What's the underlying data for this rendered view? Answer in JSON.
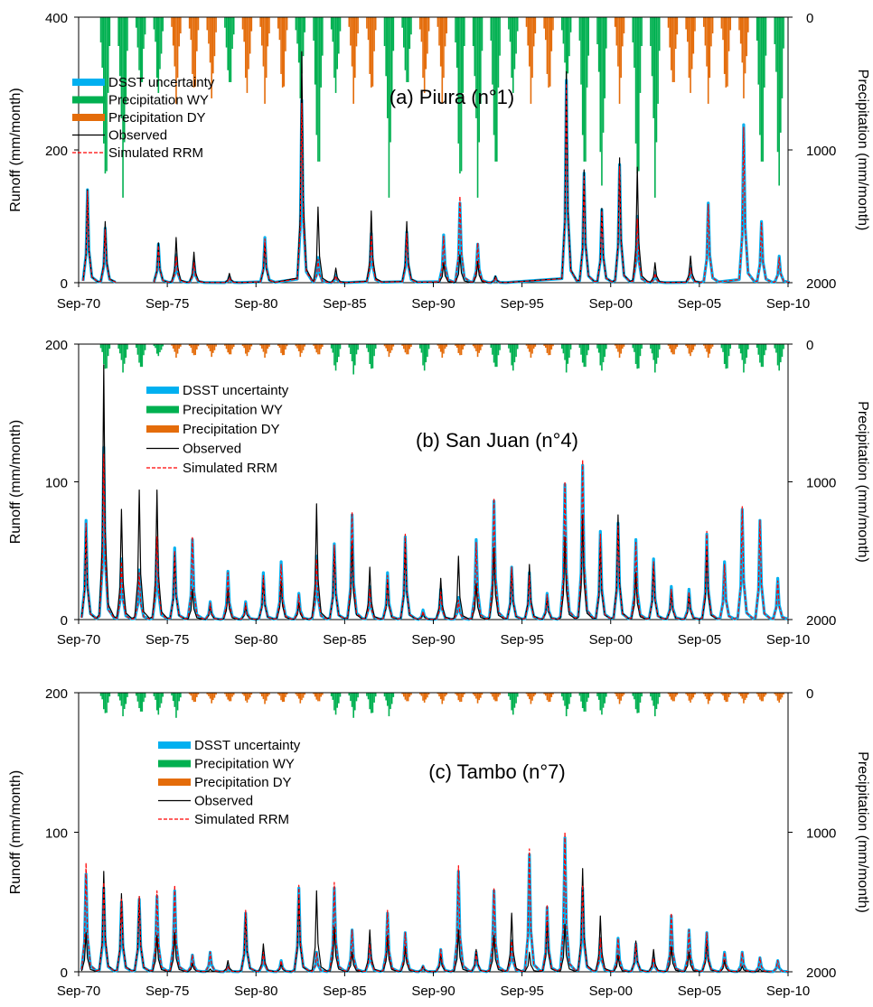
{
  "figure": {
    "x_tick_labels": [
      "Sep-70",
      "Sep-75",
      "Sep-80",
      "Sep-85",
      "Sep-90",
      "Sep-95",
      "Sep-00",
      "Sep-05",
      "Sep-10"
    ],
    "y_label_left": "Runoff (mm/month)",
    "y_label_right": "Precipitation (mm/month)",
    "legend_labels": [
      "DSST uncertainty",
      "Precipitation WY",
      "Precipitation DY",
      "Observed",
      "Simulated RRM"
    ],
    "colors": {
      "dsst": "#00b0f0",
      "precip_wy": "#00b050",
      "precip_dy": "#e46c0a",
      "observed": "#000000",
      "simulated": "#ff0000"
    }
  },
  "chart_data": [
    {
      "type": "line",
      "title": "(a) Piura (n°1)",
      "xlabel": "",
      "ylabel": "Runoff (mm/month)",
      "ylabel_right": "Precipitation (mm/month)",
      "xlim": [
        "Sep-70",
        "Sep-10"
      ],
      "ylim": [
        0,
        400
      ],
      "yticks": [
        "0",
        "200",
        "400"
      ],
      "ylim_right": [
        2000,
        0
      ],
      "yticks_right": [
        "2000",
        "1000",
        "0"
      ],
      "legend_position": "top-left",
      "x": [
        "Mar-71",
        "Mar-72",
        "Mar-73",
        "Mar-75",
        "Mar-76",
        "Mar-77",
        "Mar-79",
        "Mar-81",
        "Apr-83",
        "Mar-84",
        "Mar-85",
        "Mar-87",
        "Mar-89",
        "Apr-91",
        "Mar-92",
        "Mar-93",
        "Mar-94",
        "Mar-98",
        "Mar-99",
        "Mar-00",
        "Mar-01",
        "Mar-02",
        "Mar-03",
        "Mar-05",
        "Mar-06",
        "Mar-08",
        "Mar-09",
        "Mar-10"
      ],
      "series": [
        {
          "name": "Observed",
          "values": [
            140,
            92,
            null,
            60,
            68,
            46,
            14,
            60,
            348,
            114,
            22,
            108,
            92,
            30,
            42,
            32,
            10,
            318,
            170,
            112,
            188,
            174,
            30,
            40,
            null,
            null,
            null,
            null
          ]
        },
        {
          "name": "Simulated RRM",
          "values": [
            138,
            80,
            null,
            56,
            40,
            30,
            8,
            66,
            270,
            35,
            10,
            72,
            74,
            70,
            130,
            60,
            8,
            300,
            160,
            108,
            175,
            96,
            14,
            22,
            118,
            234,
            90,
            38
          ]
        },
        {
          "name": "DSST uncertainty",
          "values": [
            140,
            82,
            null,
            58,
            42,
            32,
            9,
            68,
            275,
            38,
            12,
            74,
            76,
            72,
            120,
            58,
            9,
            305,
            165,
            110,
            178,
            100,
            15,
            24,
            120,
            238,
            92,
            40
          ]
        }
      ],
      "precipitation": {
        "wet_years": [
          "1971",
          "1972",
          "1983",
          "1987",
          "1991",
          "1992",
          "1993",
          "1998",
          "1999",
          "2001",
          "2002",
          "2008",
          "2009"
        ],
        "dry_years": [
          "1975",
          "1976",
          "1977",
          "1979",
          "1980",
          "1981",
          "1985",
          "1986",
          "1989",
          "1990",
          "1995",
          "1996",
          "2000",
          "2003",
          "2004",
          "2005",
          "2006",
          "2007",
          "2010"
        ],
        "peak_mm": 1450
      }
    },
    {
      "type": "line",
      "title": "(b) San Juan (n°4)",
      "xlabel": "",
      "ylabel": "Runoff (mm/month)",
      "ylabel_right": "Precipitation (mm/month)",
      "xlim": [
        "Sep-70",
        "Sep-10"
      ],
      "ylim": [
        0,
        200
      ],
      "yticks": [
        "0",
        "100",
        "200"
      ],
      "ylim_right": [
        2000,
        0
      ],
      "yticks_right": [
        "2000",
        "1000",
        "0"
      ],
      "legend_position": "top-left",
      "x": [
        "Feb-71",
        "Feb-72",
        "Feb-73",
        "Feb-74",
        "Feb-75",
        "Feb-76",
        "Feb-77",
        "Feb-78",
        "Feb-79",
        "Feb-80",
        "Feb-81",
        "Feb-82",
        "Feb-83",
        "Feb-84",
        "Feb-85",
        "Feb-86",
        "Feb-87",
        "Feb-88",
        "Feb-89",
        "Feb-90",
        "Feb-91",
        "Feb-92",
        "Feb-93",
        "Feb-94",
        "Feb-95",
        "Feb-96",
        "Feb-97",
        "Feb-98",
        "Feb-99",
        "Feb-00",
        "Feb-01",
        "Feb-02",
        "Feb-03",
        "Feb-04",
        "Feb-05",
        "Feb-06",
        "Feb-07",
        "Feb-08",
        "Feb-09",
        "Feb-10"
      ],
      "series": [
        {
          "name": "Observed",
          "values": [
            66,
            185,
            80,
            94,
            94,
            48,
            22,
            10,
            22,
            10,
            30,
            28,
            12,
            84,
            52,
            56,
            38,
            28,
            56,
            5,
            30,
            46,
            26,
            52,
            36,
            40,
            16,
            60,
            76,
            56,
            76,
            34,
            40,
            20,
            18,
            52,
            null,
            null,
            null,
            null
          ]
        },
        {
          "name": "Simulated RRM",
          "values": [
            70,
            120,
            42,
            34,
            60,
            50,
            60,
            12,
            34,
            12,
            32,
            40,
            18,
            44,
            54,
            78,
            22,
            32,
            62,
            6,
            20,
            14,
            56,
            88,
            38,
            32,
            18,
            100,
            116,
            62,
            68,
            56,
            42,
            22,
            20,
            64,
            40,
            82,
            72,
            28
          ]
        },
        {
          "name": "DSST uncertainty",
          "values": [
            72,
            125,
            44,
            36,
            58,
            52,
            58,
            13,
            35,
            13,
            34,
            42,
            19,
            46,
            55,
            76,
            24,
            34,
            60,
            7,
            22,
            16,
            58,
            86,
            38,
            34,
            19,
            98,
            112,
            64,
            70,
            58,
            44,
            24,
            22,
            62,
            42,
            80,
            72,
            30
          ]
        }
      ],
      "precipitation": {
        "wet_years": [
          "1971",
          "1972",
          "1973",
          "1984",
          "1985",
          "1986",
          "1989",
          "1993",
          "1994",
          "1997",
          "1998",
          "1999",
          "2001",
          "2002",
          "2006",
          "2007",
          "2008",
          "2009",
          "2010"
        ],
        "dry_years": [
          "1975",
          "1976",
          "1977",
          "1978",
          "1979",
          "1980",
          "1981",
          "1982",
          "1983",
          "1987",
          "1988",
          "1990",
          "1991",
          "1992",
          "1995",
          "1996",
          "2000",
          "2003",
          "2004",
          "2005"
        ],
        "peak_mm": 220
      }
    },
    {
      "type": "line",
      "title": "(c) Tambo (n°7)",
      "xlabel": "",
      "ylabel": "Runoff (mm/month)",
      "ylabel_right": "Precipitation (mm/month)",
      "xlim": [
        "Sep-70",
        "Sep-10"
      ],
      "ylim": [
        0,
        200
      ],
      "yticks": [
        "0",
        "100",
        "200"
      ],
      "ylim_right": [
        2000,
        0
      ],
      "yticks_right": [
        "2000",
        "1000",
        "0"
      ],
      "legend_position": "top-left",
      "x": [
        "Feb-71",
        "Feb-72",
        "Feb-73",
        "Feb-74",
        "Feb-75",
        "Feb-76",
        "Feb-77",
        "Feb-78",
        "Feb-79",
        "Feb-80",
        "Feb-81",
        "Feb-82",
        "Feb-83",
        "Feb-84",
        "Feb-85",
        "Feb-86",
        "Feb-87",
        "Feb-88",
        "Feb-89",
        "Feb-90",
        "Feb-91",
        "Feb-92",
        "Feb-93",
        "Feb-94",
        "Feb-95",
        "Feb-96",
        "Feb-97",
        "Feb-98",
        "Feb-99",
        "Feb-00",
        "Feb-01",
        "Feb-02",
        "Feb-03",
        "Feb-04",
        "Feb-05",
        "Feb-06",
        "Feb-07",
        "Feb-08",
        "Feb-09",
        "Feb-10"
      ],
      "series": [
        {
          "name": "Observed",
          "values": [
            28,
            72,
            56,
            54,
            26,
            28,
            6,
            2,
            8,
            42,
            20,
            6,
            54,
            58,
            32,
            14,
            30,
            26,
            18,
            4,
            12,
            30,
            16,
            26,
            42,
            14,
            36,
            34,
            74,
            40,
            12,
            22,
            16,
            18,
            14,
            22,
            8,
            4,
            2,
            null
          ]
        },
        {
          "name": "Simulated RRM",
          "values": [
            78,
            64,
            52,
            54,
            58,
            62,
            12,
            14,
            4,
            44,
            14,
            8,
            62,
            14,
            64,
            30,
            20,
            44,
            28,
            4,
            16,
            76,
            14,
            60,
            22,
            88,
            48,
            100,
            62,
            24,
            24,
            20,
            10,
            42,
            30,
            28,
            14,
            14,
            10,
            8
          ]
        },
        {
          "name": "DSST uncertainty",
          "values": [
            70,
            60,
            50,
            52,
            54,
            58,
            12,
            14,
            4,
            42,
            14,
            8,
            60,
            14,
            60,
            30,
            20,
            42,
            28,
            4,
            16,
            72,
            14,
            58,
            22,
            84,
            46,
            96,
            60,
            24,
            24,
            20,
            10,
            40,
            30,
            28,
            14,
            14,
            10,
            8
          ]
        }
      ],
      "precipitation": {
        "wet_years": [
          "1971",
          "1972",
          "1973",
          "1974",
          "1975",
          "1984",
          "1985",
          "1986",
          "1987",
          "1994",
          "1997",
          "1998",
          "1999",
          "2001",
          "2002"
        ],
        "dry_years": [
          "1976",
          "1977",
          "1978",
          "1979",
          "1980",
          "1981",
          "1982",
          "1983",
          "1988",
          "1989",
          "1990",
          "1991",
          "1992",
          "1993",
          "1995",
          "1996",
          "2000",
          "2003",
          "2004",
          "2005",
          "2006",
          "2007",
          "2008",
          "2009",
          "2010"
        ],
        "peak_mm": 180
      }
    }
  ]
}
